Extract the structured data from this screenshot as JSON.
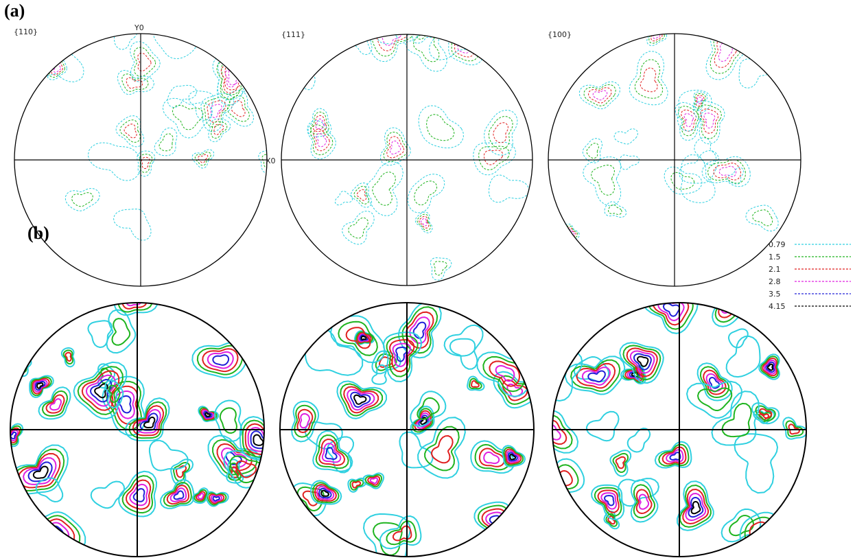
{
  "figure": {
    "panels": [
      {
        "label": "(a)",
        "poles": [
          "{110}",
          "{111}",
          "{100}"
        ],
        "axis_y": "Y0",
        "axis_x": "X0"
      },
      {
        "label": "(b)"
      }
    ],
    "legend": [
      {
        "label": "0.79",
        "color": "#2fd0e0"
      },
      {
        "label": "1.5",
        "color": "#1fb41f"
      },
      {
        "label": "2.1",
        "color": "#e02020"
      },
      {
        "label": "2.8",
        "color": "#e020e0"
      },
      {
        "label": "3.5",
        "color": "#2020d8"
      },
      {
        "label": "4.15",
        "color": "#000000"
      }
    ]
  }
}
